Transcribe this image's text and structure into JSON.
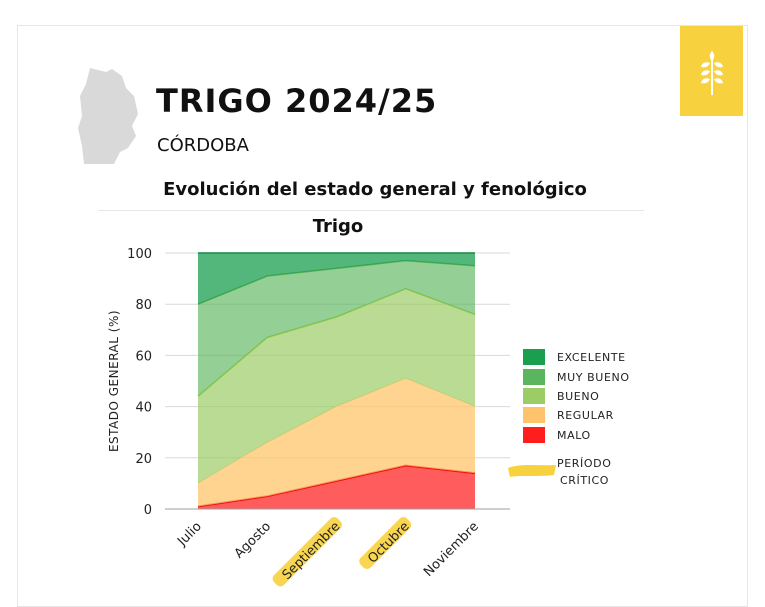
{
  "header": {
    "title": "TRIGO 2024/25",
    "region": "CÓRDOBA",
    "section_title": "Evolución del estado general y fenológico"
  },
  "colors": {
    "badge": "#f8d23e",
    "excelente": "#1a9f4f",
    "muy_bueno": "#5bb55e",
    "bueno": "#9ccc65",
    "regular": "#ffc46b",
    "malo": "#ff1e1e",
    "critical_highlight": "#f8d23e"
  },
  "icons": {
    "badge_icon": "wheat-icon",
    "province_icon": "cordoba-map-icon"
  },
  "chart_data": {
    "type": "area",
    "stacked": true,
    "title": "Trigo",
    "xlabel": "",
    "ylabel": "ESTADO GENERAL (%)",
    "ylim": [
      0,
      100
    ],
    "yticks": [
      "0",
      "20",
      "40",
      "60",
      "80",
      "100"
    ],
    "categories": [
      "Julio",
      "Agosto",
      "Septiembre",
      "Octubre",
      "Noviembre"
    ],
    "critical_period": [
      "Septiembre",
      "Octubre"
    ],
    "grid": true,
    "legend_placement": "right",
    "series": [
      {
        "name": "MALO",
        "values": [
          1,
          5,
          11,
          17,
          14
        ]
      },
      {
        "name": "REGULAR",
        "values": [
          9,
          21,
          29,
          34,
          26
        ]
      },
      {
        "name": "BUENO",
        "values": [
          34,
          41,
          35,
          35,
          36
        ]
      },
      {
        "name": "MUY BUENO",
        "values": [
          36,
          24,
          19,
          11,
          19
        ]
      },
      {
        "name": "EXCELENTE",
        "values": [
          20,
          9,
          6,
          3,
          5
        ]
      }
    ],
    "legend": [
      "EXCELENTE",
      "MUY BUENO",
      "BUENO",
      "REGULAR",
      "MALO",
      "PERÍODO CRÍTICO"
    ],
    "legend_critical_lines": [
      "PERÍODO",
      "CRÍTICO"
    ]
  }
}
